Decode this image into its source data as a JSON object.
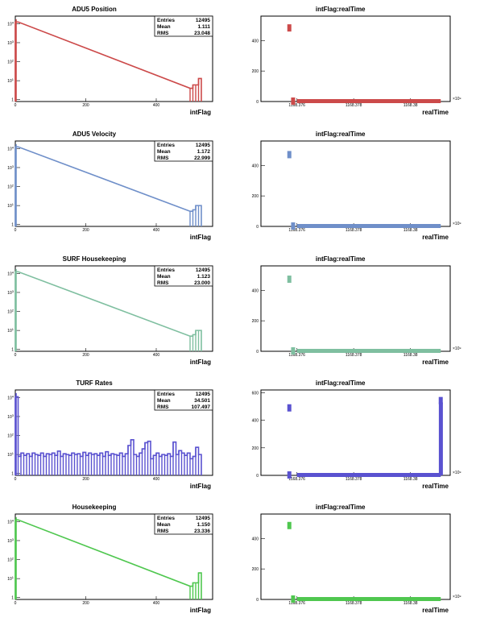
{
  "chart_data": [
    {
      "type": "bar",
      "title": "ADU5 Position",
      "xlabel": "intFlag",
      "ylabel": "",
      "log_y": true,
      "xlim": [
        0,
        560
      ],
      "ylim": [
        0.8,
        25000
      ],
      "xticks": [
        "0",
        "200",
        "400"
      ],
      "color": "#cc4a4a",
      "stats": {
        "entries_label": "Entries",
        "entries": "12495",
        "mean_label": "Mean",
        "mean": "1.111",
        "rms_label": "RMS",
        "rms": "23.048"
      },
      "bins": [
        [
          0,
          12300
        ],
        [
          496,
          4
        ],
        [
          504,
          6
        ],
        [
          512,
          6
        ],
        [
          520,
          13
        ]
      ]
    },
    {
      "type": "scatter",
      "title": "intFlag:realTime",
      "xlabel": "realTime",
      "ylabel": "",
      "ylim": [
        0,
        560
      ],
      "yticks": [
        "0",
        "200",
        "400"
      ],
      "xticks": [
        "1168.376",
        "1168.378",
        "1168.38"
      ],
      "exponent": "×10⁹",
      "color": "#cc4a4a",
      "points": [
        [
          0.15,
          480
        ],
        [
          0.17,
          0
        ]
      ],
      "band": [
        0.19,
        0.95,
        0
      ]
    },
    {
      "type": "bar",
      "title": "ADU5 Velocity",
      "xlabel": "intFlag",
      "ylabel": "",
      "log_y": true,
      "xlim": [
        0,
        560
      ],
      "ylim": [
        0.8,
        25000
      ],
      "xticks": [
        "0",
        "200",
        "400"
      ],
      "color": "#6f8fc9",
      "stats": {
        "entries_label": "Entries",
        "entries": "12495",
        "mean_label": "Mean",
        "mean": "1.172",
        "rms_label": "RMS",
        "rms": "22.999"
      },
      "bins": [
        [
          0,
          12300
        ],
        [
          496,
          5
        ],
        [
          504,
          6
        ],
        [
          512,
          10
        ],
        [
          520,
          10
        ]
      ]
    },
    {
      "type": "scatter",
      "title": "intFlag:realTime",
      "xlabel": "realTime",
      "ylabel": "",
      "ylim": [
        0,
        560
      ],
      "yticks": [
        "0",
        "200",
        "400"
      ],
      "xticks": [
        "1168.376",
        "1168.378",
        "1168.38"
      ],
      "exponent": "×10⁹",
      "color": "#6f8fc9",
      "points": [
        [
          0.15,
          468
        ],
        [
          0.17,
          0
        ]
      ],
      "band": [
        0.19,
        0.95,
        0
      ]
    },
    {
      "type": "bar",
      "title": "SURF Housekeeping",
      "xlabel": "intFlag",
      "ylabel": "",
      "log_y": true,
      "xlim": [
        0,
        560
      ],
      "ylim": [
        0.8,
        25000
      ],
      "xticks": [
        "0",
        "200",
        "400"
      ],
      "color": "#7fbfa0",
      "stats": {
        "entries_label": "Entries",
        "entries": "12495",
        "mean_label": "Mean",
        "mean": "1.123",
        "rms_label": "RMS",
        "rms": "23.000"
      },
      "bins": [
        [
          0,
          12300
        ],
        [
          496,
          5
        ],
        [
          504,
          6
        ],
        [
          512,
          10
        ],
        [
          520,
          10
        ]
      ]
    },
    {
      "type": "scatter",
      "title": "intFlag:realTime",
      "xlabel": "realTime",
      "ylabel": "",
      "ylim": [
        0,
        560
      ],
      "yticks": [
        "0",
        "200",
        "400"
      ],
      "xticks": [
        "1168.376",
        "1168.378",
        "1168.38"
      ],
      "exponent": "×10⁹",
      "color": "#7fbfa0",
      "points": [
        [
          0.15,
          470
        ],
        [
          0.17,
          0
        ]
      ],
      "band": [
        0.19,
        0.95,
        0
      ]
    },
    {
      "type": "bar",
      "title": "TURF Rates",
      "xlabel": "intFlag",
      "ylabel": "",
      "log_y": true,
      "xlim": [
        0,
        560
      ],
      "ylim": [
        0.8,
        25000
      ],
      "xticks": [
        "0",
        "200",
        "400"
      ],
      "color": "#5a52d0",
      "stats": {
        "entries_label": "Entries",
        "entries": "12495",
        "mean_label": "Mean",
        "mean": "34.501",
        "rms_label": "RMS",
        "rms": "107.497"
      },
      "bins": [
        [
          0,
          11000
        ],
        [
          8,
          8
        ],
        [
          16,
          12
        ],
        [
          24,
          9
        ],
        [
          32,
          11
        ],
        [
          40,
          8
        ],
        [
          48,
          12
        ],
        [
          56,
          10
        ],
        [
          64,
          9
        ],
        [
          72,
          12
        ],
        [
          80,
          8
        ],
        [
          88,
          11
        ],
        [
          96,
          10
        ],
        [
          104,
          12
        ],
        [
          112,
          9
        ],
        [
          120,
          15
        ],
        [
          128,
          8
        ],
        [
          136,
          11
        ],
        [
          144,
          10
        ],
        [
          152,
          9
        ],
        [
          160,
          12
        ],
        [
          168,
          10
        ],
        [
          176,
          11
        ],
        [
          184,
          8
        ],
        [
          192,
          13
        ],
        [
          200,
          9
        ],
        [
          208,
          12
        ],
        [
          216,
          10
        ],
        [
          224,
          11
        ],
        [
          232,
          9
        ],
        [
          240,
          12
        ],
        [
          248,
          8
        ],
        [
          256,
          14
        ],
        [
          264,
          9
        ],
        [
          272,
          11
        ],
        [
          280,
          10
        ],
        [
          288,
          9
        ],
        [
          296,
          12
        ],
        [
          304,
          8
        ],
        [
          312,
          11
        ],
        [
          320,
          30
        ],
        [
          328,
          60
        ],
        [
          336,
          10
        ],
        [
          344,
          8
        ],
        [
          352,
          12
        ],
        [
          360,
          20
        ],
        [
          368,
          42
        ],
        [
          376,
          50
        ],
        [
          384,
          6
        ],
        [
          392,
          9
        ],
        [
          400,
          12
        ],
        [
          408,
          8
        ],
        [
          416,
          10
        ],
        [
          424,
          9
        ],
        [
          432,
          11
        ],
        [
          440,
          8
        ],
        [
          448,
          45
        ],
        [
          456,
          10
        ],
        [
          464,
          16
        ],
        [
          472,
          12
        ],
        [
          480,
          9
        ],
        [
          488,
          12
        ],
        [
          496,
          6
        ],
        [
          504,
          8
        ],
        [
          512,
          24
        ],
        [
          520,
          10
        ]
      ]
    },
    {
      "type": "scatter",
      "title": "intFlag:realTime",
      "xlabel": "realTime",
      "ylabel": "",
      "ylim": [
        0,
        620
      ],
      "yticks": [
        "0",
        "200",
        "400",
        "600"
      ],
      "xticks": [
        "1168.376",
        "1168.378",
        "1168.38"
      ],
      "exponent": "×10⁹",
      "color": "#5a52d0",
      "points": [
        [
          0.15,
          487
        ],
        [
          0.15,
          0
        ],
        [
          0.95,
          540
        ]
      ],
      "band": [
        0.19,
        0.95,
        0
      ],
      "spike": [
        0.94,
        0,
        530
      ]
    },
    {
      "type": "bar",
      "title": "Housekeeping",
      "xlabel": "intFlag",
      "ylabel": "",
      "log_y": true,
      "xlim": [
        0,
        560
      ],
      "ylim": [
        0.8,
        25000
      ],
      "xticks": [
        "0",
        "200",
        "400"
      ],
      "color": "#4fc74f",
      "stats": {
        "entries_label": "Entries",
        "entries": "12495",
        "mean_label": "Mean",
        "mean": "1.150",
        "rms_label": "RMS",
        "rms": "23.336"
      },
      "bins": [
        [
          0,
          12300
        ],
        [
          496,
          4
        ],
        [
          504,
          6
        ],
        [
          512,
          6
        ],
        [
          520,
          20
        ]
      ]
    },
    {
      "type": "scatter",
      "title": "intFlag:realTime",
      "xlabel": "realTime",
      "ylabel": "",
      "ylim": [
        0,
        560
      ],
      "yticks": [
        "0",
        "200",
        "400"
      ],
      "xticks": [
        "1168.376",
        "1168.378",
        "1168.38"
      ],
      "exponent": "×10⁹",
      "color": "#4fc74f",
      "points": [
        [
          0.15,
          482
        ],
        [
          0.17,
          0
        ]
      ],
      "band": [
        0.19,
        0.95,
        0
      ]
    }
  ]
}
